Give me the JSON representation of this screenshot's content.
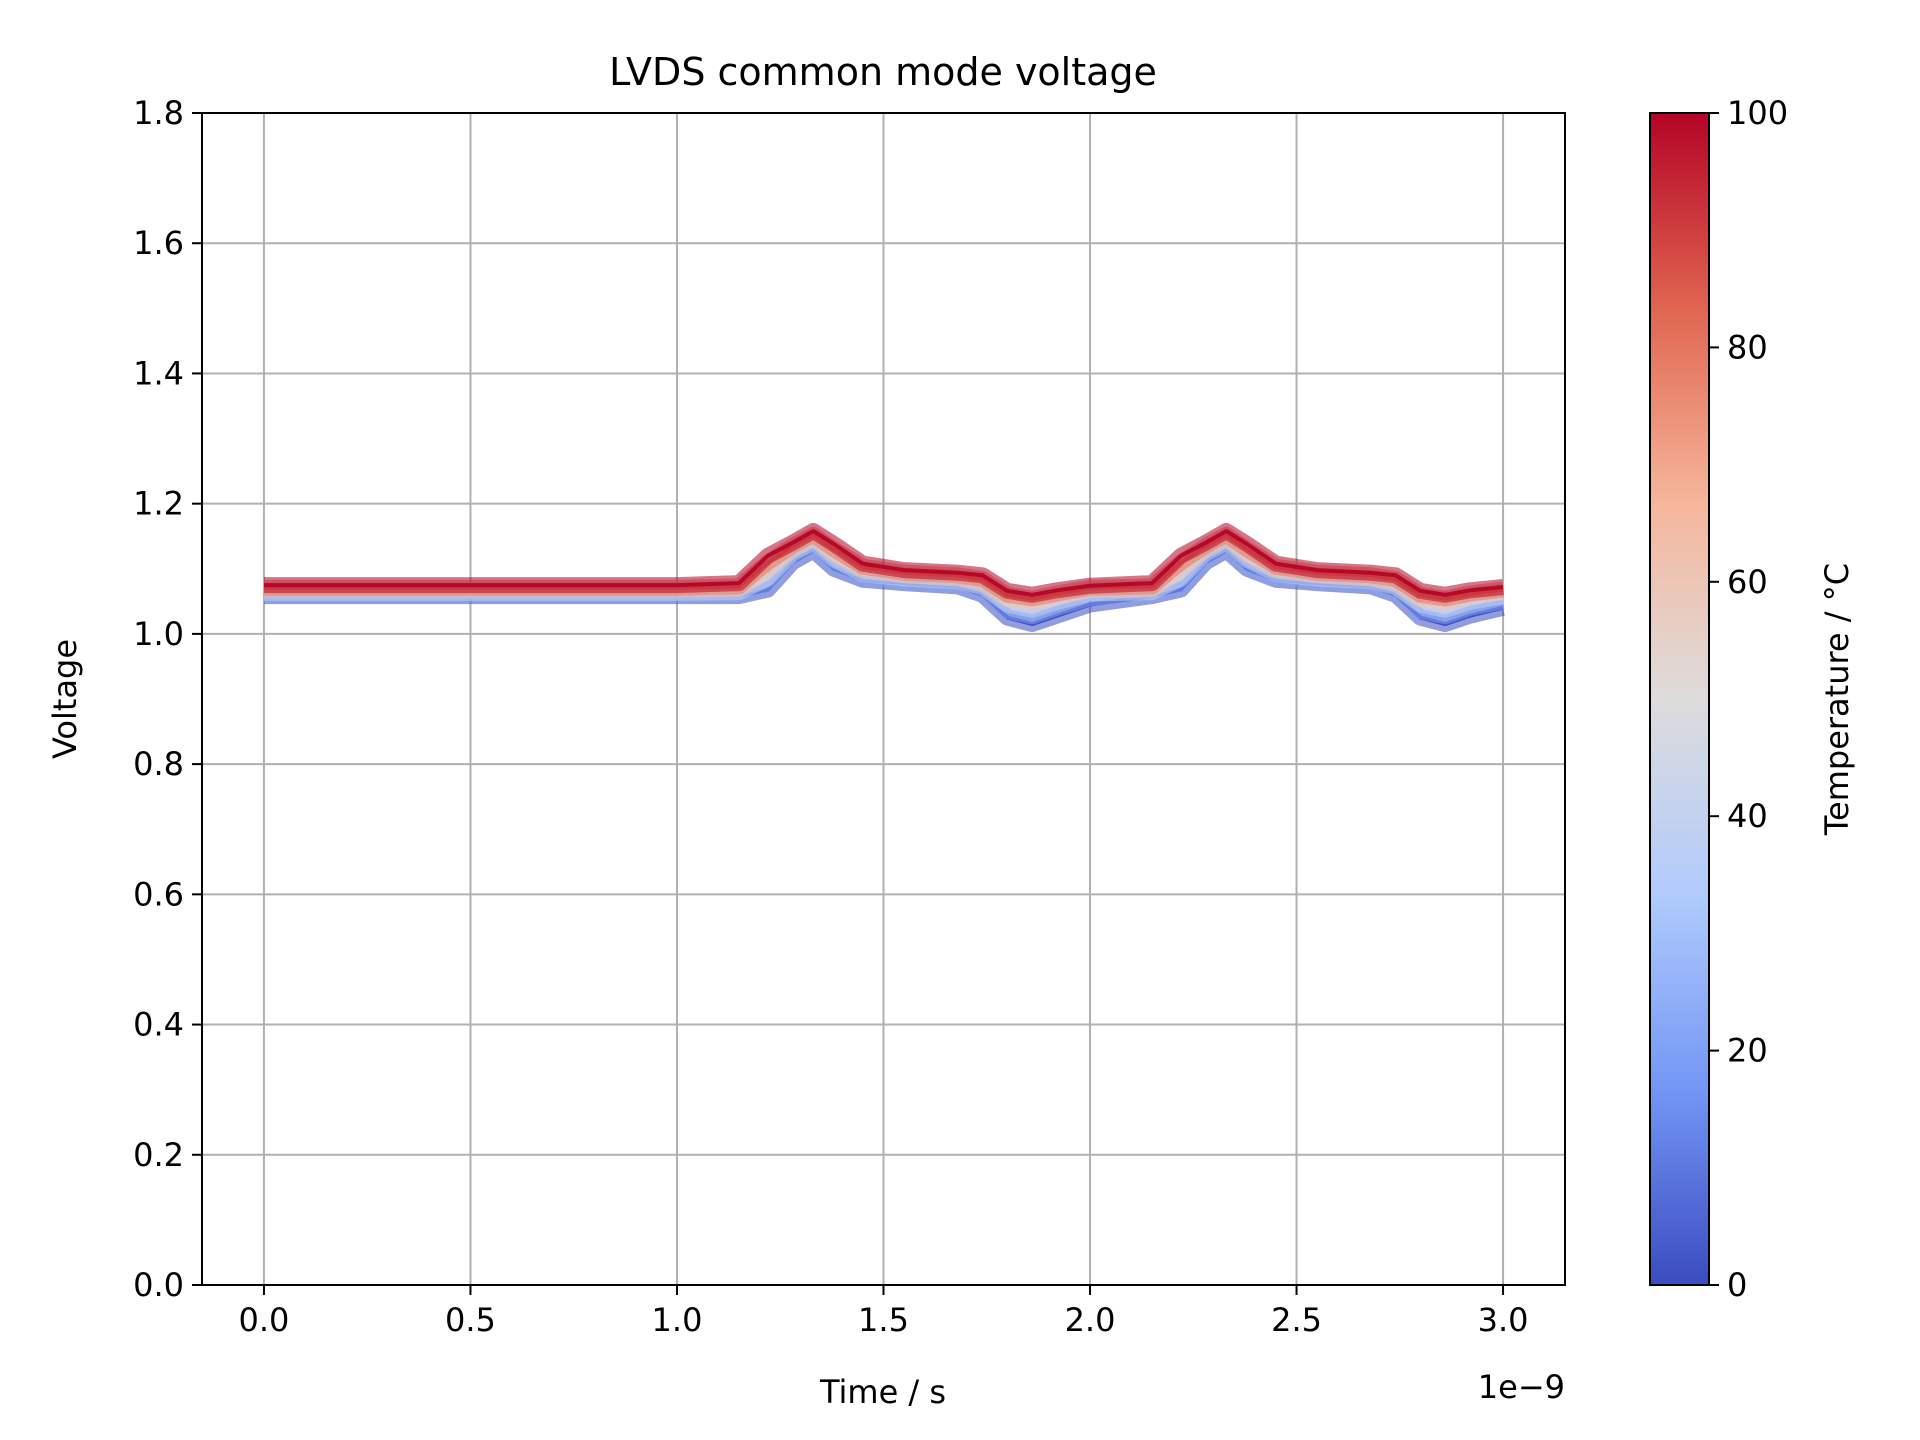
{
  "chart_data": {
    "type": "line",
    "title": "LVDS common mode voltage",
    "xlabel": "Time / s",
    "ylabel": "Voltage",
    "x_offset_label": "1e−9",
    "xlim": [
      -0.15,
      3.15
    ],
    "ylim": [
      0.0,
      1.8
    ],
    "x_ticks": [
      0.0,
      0.5,
      1.0,
      1.5,
      2.0,
      2.5,
      3.0
    ],
    "x_tick_labels": [
      "0.0",
      "0.5",
      "1.0",
      "1.5",
      "2.0",
      "2.5",
      "3.0"
    ],
    "y_ticks": [
      0.0,
      0.2,
      0.4,
      0.6,
      0.8,
      1.0,
      1.2,
      1.4,
      1.6,
      1.8
    ],
    "y_tick_labels": [
      "0.0",
      "0.2",
      "0.4",
      "0.6",
      "0.8",
      "1.0",
      "1.2",
      "1.4",
      "1.6",
      "1.8"
    ],
    "grid": true,
    "x": [
      0.0,
      1.0,
      1.15,
      1.22,
      1.28,
      1.33,
      1.38,
      1.45,
      1.55,
      1.68,
      1.74,
      1.8,
      1.86,
      1.92,
      2.0,
      2.15,
      2.22,
      2.28,
      2.33,
      2.38,
      2.45,
      2.55,
      2.68,
      2.74,
      2.8,
      2.86,
      2.92,
      3.0
    ],
    "series": [
      {
        "temperature": 0,
        "values": [
          1.058,
          1.058,
          1.058,
          1.068,
          1.11,
          1.128,
          1.1,
          1.083,
          1.078,
          1.073,
          1.06,
          1.025,
          1.015,
          1.028,
          1.045,
          1.058,
          1.068,
          1.11,
          1.128,
          1.1,
          1.083,
          1.078,
          1.073,
          1.06,
          1.025,
          1.015,
          1.028,
          1.04
        ]
      },
      {
        "temperature": 20,
        "values": [
          1.06,
          1.06,
          1.061,
          1.075,
          1.118,
          1.135,
          1.106,
          1.087,
          1.081,
          1.077,
          1.066,
          1.035,
          1.027,
          1.04,
          1.055,
          1.061,
          1.075,
          1.118,
          1.135,
          1.106,
          1.087,
          1.081,
          1.077,
          1.066,
          1.035,
          1.027,
          1.04,
          1.05
        ]
      },
      {
        "temperature": 40,
        "values": [
          1.063,
          1.063,
          1.064,
          1.085,
          1.124,
          1.14,
          1.114,
          1.092,
          1.085,
          1.081,
          1.072,
          1.045,
          1.037,
          1.049,
          1.062,
          1.064,
          1.085,
          1.124,
          1.14,
          1.114,
          1.092,
          1.085,
          1.081,
          1.072,
          1.045,
          1.037,
          1.049,
          1.058
        ]
      },
      {
        "temperature": 60,
        "values": [
          1.067,
          1.067,
          1.068,
          1.098,
          1.13,
          1.146,
          1.122,
          1.098,
          1.09,
          1.085,
          1.078,
          1.053,
          1.047,
          1.057,
          1.067,
          1.068,
          1.098,
          1.13,
          1.146,
          1.122,
          1.098,
          1.09,
          1.085,
          1.078,
          1.053,
          1.047,
          1.057,
          1.064
        ]
      },
      {
        "temperature": 80,
        "values": [
          1.071,
          1.071,
          1.073,
          1.11,
          1.135,
          1.152,
          1.13,
          1.103,
          1.094,
          1.09,
          1.084,
          1.06,
          1.054,
          1.062,
          1.071,
          1.073,
          1.11,
          1.135,
          1.152,
          1.13,
          1.103,
          1.094,
          1.09,
          1.084,
          1.06,
          1.054,
          1.062,
          1.068
        ]
      },
      {
        "temperature": 100,
        "values": [
          1.075,
          1.075,
          1.078,
          1.12,
          1.14,
          1.158,
          1.138,
          1.108,
          1.098,
          1.094,
          1.09,
          1.066,
          1.06,
          1.067,
          1.074,
          1.078,
          1.12,
          1.14,
          1.158,
          1.138,
          1.108,
          1.098,
          1.094,
          1.09,
          1.066,
          1.06,
          1.067,
          1.072
        ]
      }
    ],
    "colorbar": {
      "label": "Temperature / °C",
      "range": [
        0,
        100
      ],
      "ticks": [
        0,
        20,
        40,
        60,
        80,
        100
      ],
      "tick_labels": [
        "0",
        "20",
        "40",
        "60",
        "80",
        "100"
      ],
      "colormap": "coolwarm",
      "colors": [
        "#3b4cc0",
        "#7396f5",
        "#b0cbfc",
        "#dddcdc",
        "#f6b69b",
        "#e0654f",
        "#b40426"
      ]
    }
  }
}
